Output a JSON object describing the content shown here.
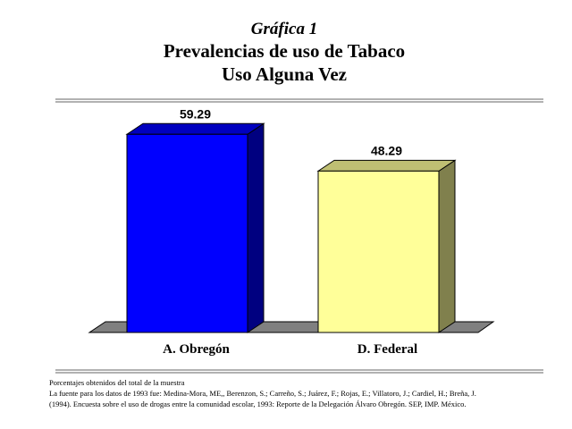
{
  "chart_data": {
    "type": "bar3d",
    "title_lines": [
      "Gráfica 1",
      "Prevalencias de uso de Tabaco",
      "Uso Alguna Vez"
    ],
    "categories": [
      "A. Obregón",
      "D. Federal"
    ],
    "values": [
      59.29,
      48.29
    ],
    "colors": [
      "#0000ff",
      "#ffff99"
    ],
    "notes": [
      "Porcentajes obtenidos del total de la muestra",
      "La fuente para los datos de 1993 fue: Medina-Mora, ME,, Berenzon, S.; Carreño, S.; Juárez, F.; Rojas, E.; Villatoro, J.; Cardiel, H.; Breña, J.",
      "(1994). Encuesta sobre el uso de drogas entre la comunidad escolar, 1993: Reporte de la Delegación Álvaro Obregón. SEP, IMP. México."
    ]
  }
}
